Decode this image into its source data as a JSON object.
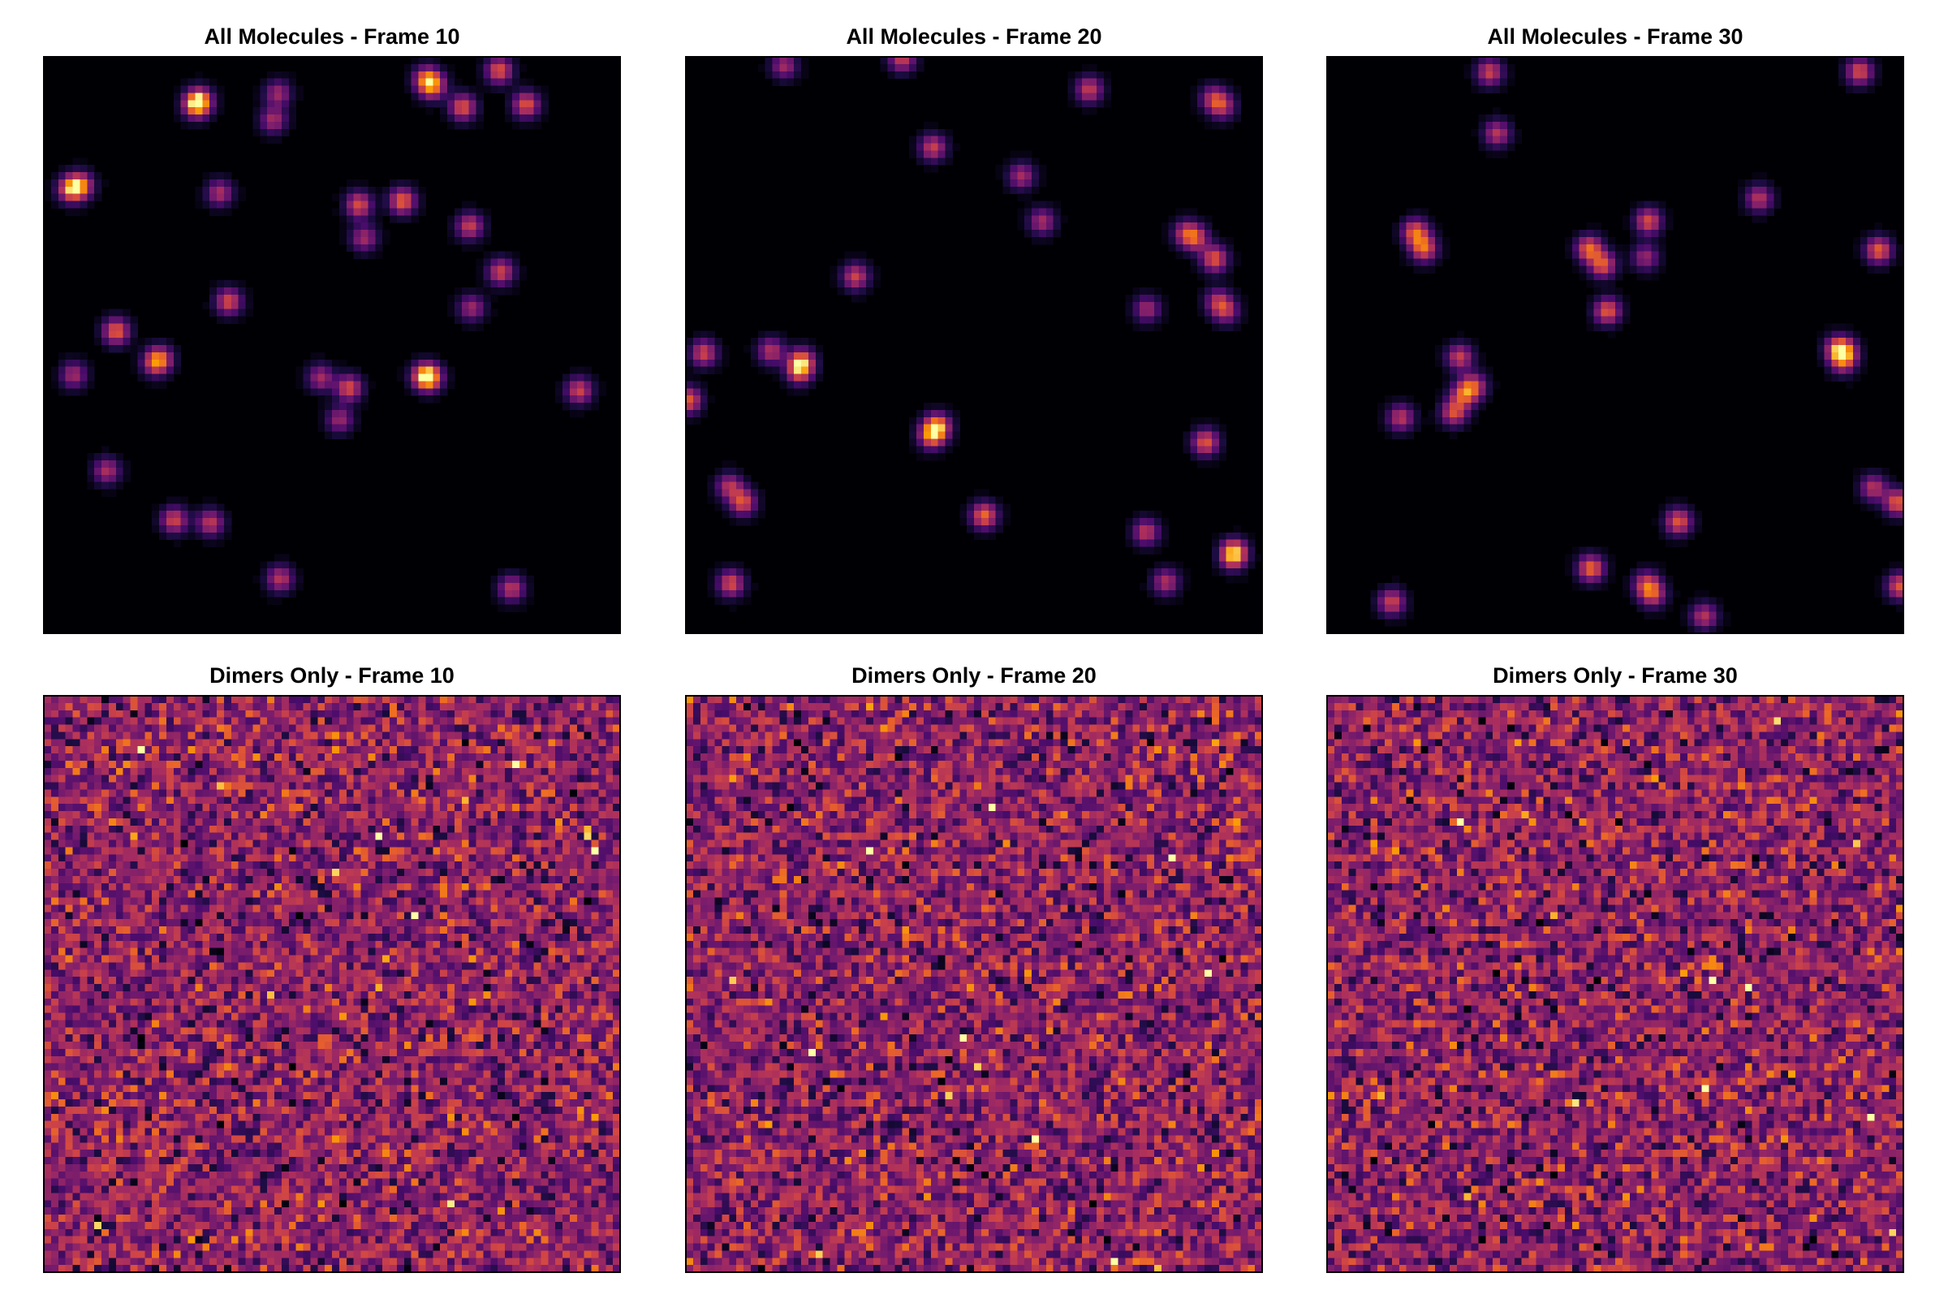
{
  "chart_data": [
    {
      "type": "spots",
      "title": "All Molecules - Frame 10",
      "cmap": "inferno"
    },
    {
      "type": "spots",
      "title": "All Molecules - Frame 20",
      "cmap": "inferno"
    },
    {
      "type": "spots",
      "title": "All Molecules - Frame 30",
      "cmap": "inferno"
    },
    {
      "type": "noise",
      "title": "Dimers Only - Frame 10",
      "cmap": "inferno"
    },
    {
      "type": "noise",
      "title": "Dimers Only - Frame 20",
      "cmap": "inferno"
    },
    {
      "type": "noise",
      "title": "Dimers Only - Frame 30",
      "cmap": "inferno"
    }
  ]
}
